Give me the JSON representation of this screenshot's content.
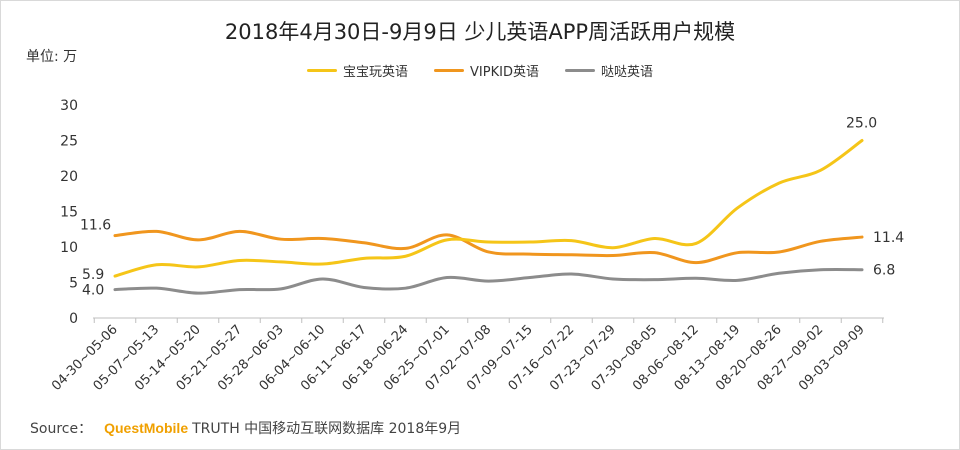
{
  "chart_data": {
    "type": "line",
    "title": "2018年4月30日-9月9日 少儿英语APP周活跃用户规模",
    "unit_label": "单位: 万",
    "categories": [
      "04-30~05-06",
      "05-07~05-13",
      "05-14~05-20",
      "05-21~05-27",
      "05-28~06-03",
      "06-04~06-10",
      "06-11~06-17",
      "06-18~06-24",
      "06-25~07-01",
      "07-02~07-08",
      "07-09~07-15",
      "07-16~07-22",
      "07-23~07-29",
      "07-30~08-05",
      "08-06~08-12",
      "08-13~08-19",
      "08-20~08-26",
      "08-27~09-02",
      "09-03~09-09"
    ],
    "ylim": [
      0,
      30
    ],
    "yticks": [
      "0",
      "5",
      "10",
      "15",
      "20",
      "25",
      "30"
    ],
    "legend_position": "top",
    "grid": false,
    "series": [
      {
        "name": "宝宝玩英语",
        "color": "#f5c518",
        "values": [
          5.9,
          7.5,
          7.2,
          8.1,
          7.9,
          7.6,
          8.4,
          8.7,
          11.0,
          10.7,
          10.7,
          10.9,
          9.9,
          11.2,
          10.5,
          15.5,
          19.0,
          20.8,
          25.0
        ],
        "labels": {
          "0": "5.9",
          "18": "25.0"
        }
      },
      {
        "name": "VIPKID英语",
        "color": "#f0961e",
        "values": [
          11.6,
          12.2,
          11.0,
          12.2,
          11.1,
          11.2,
          10.6,
          9.8,
          11.7,
          9.3,
          9.0,
          8.9,
          8.8,
          9.2,
          7.8,
          9.2,
          9.3,
          10.8,
          11.4
        ],
        "labels": {
          "0": "11.6",
          "18": "11.4"
        }
      },
      {
        "name": "哒哒英语",
        "color": "#8c8c8c",
        "values": [
          4.0,
          4.2,
          3.5,
          4.0,
          4.1,
          5.5,
          4.3,
          4.2,
          5.7,
          5.2,
          5.7,
          6.2,
          5.5,
          5.4,
          5.6,
          5.3,
          6.3,
          6.8,
          6.8
        ],
        "labels": {
          "0": "4.0",
          "18": "6.8"
        }
      }
    ]
  },
  "source": {
    "prefix": "Source：",
    "brand": "QuestMobile",
    "rest": "TRUTH 中国移动互联网数据库 2018年9月"
  }
}
